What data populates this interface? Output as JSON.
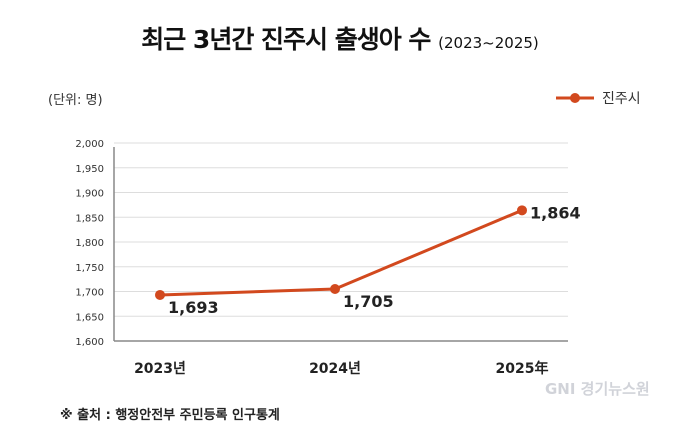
{
  "chart_data": {
    "type": "line",
    "title": "최근 3년간 진주시 출생아 수",
    "subtitle": "(2023~2025)",
    "unit_label": "(단위: 명)",
    "categories": [
      "2023년",
      "2024년",
      "2025年"
    ],
    "series": [
      {
        "name": "진주시",
        "values": [
          1693,
          1705,
          1864
        ],
        "data_labels": [
          "1,693",
          "1,705",
          "1,864"
        ],
        "color": "#d2491e"
      }
    ],
    "ylim": [
      1600,
      2000
    ],
    "yticks": [
      "1,600",
      "1,650",
      "1,700",
      "1,750",
      "1,800",
      "1,850",
      "1,900",
      "1,950",
      "2,000"
    ],
    "grid": true,
    "legend": "top-right"
  },
  "source": "※ 출처 : 행정안전부 주민등록 인구통계",
  "watermark": "경기뉴스원"
}
